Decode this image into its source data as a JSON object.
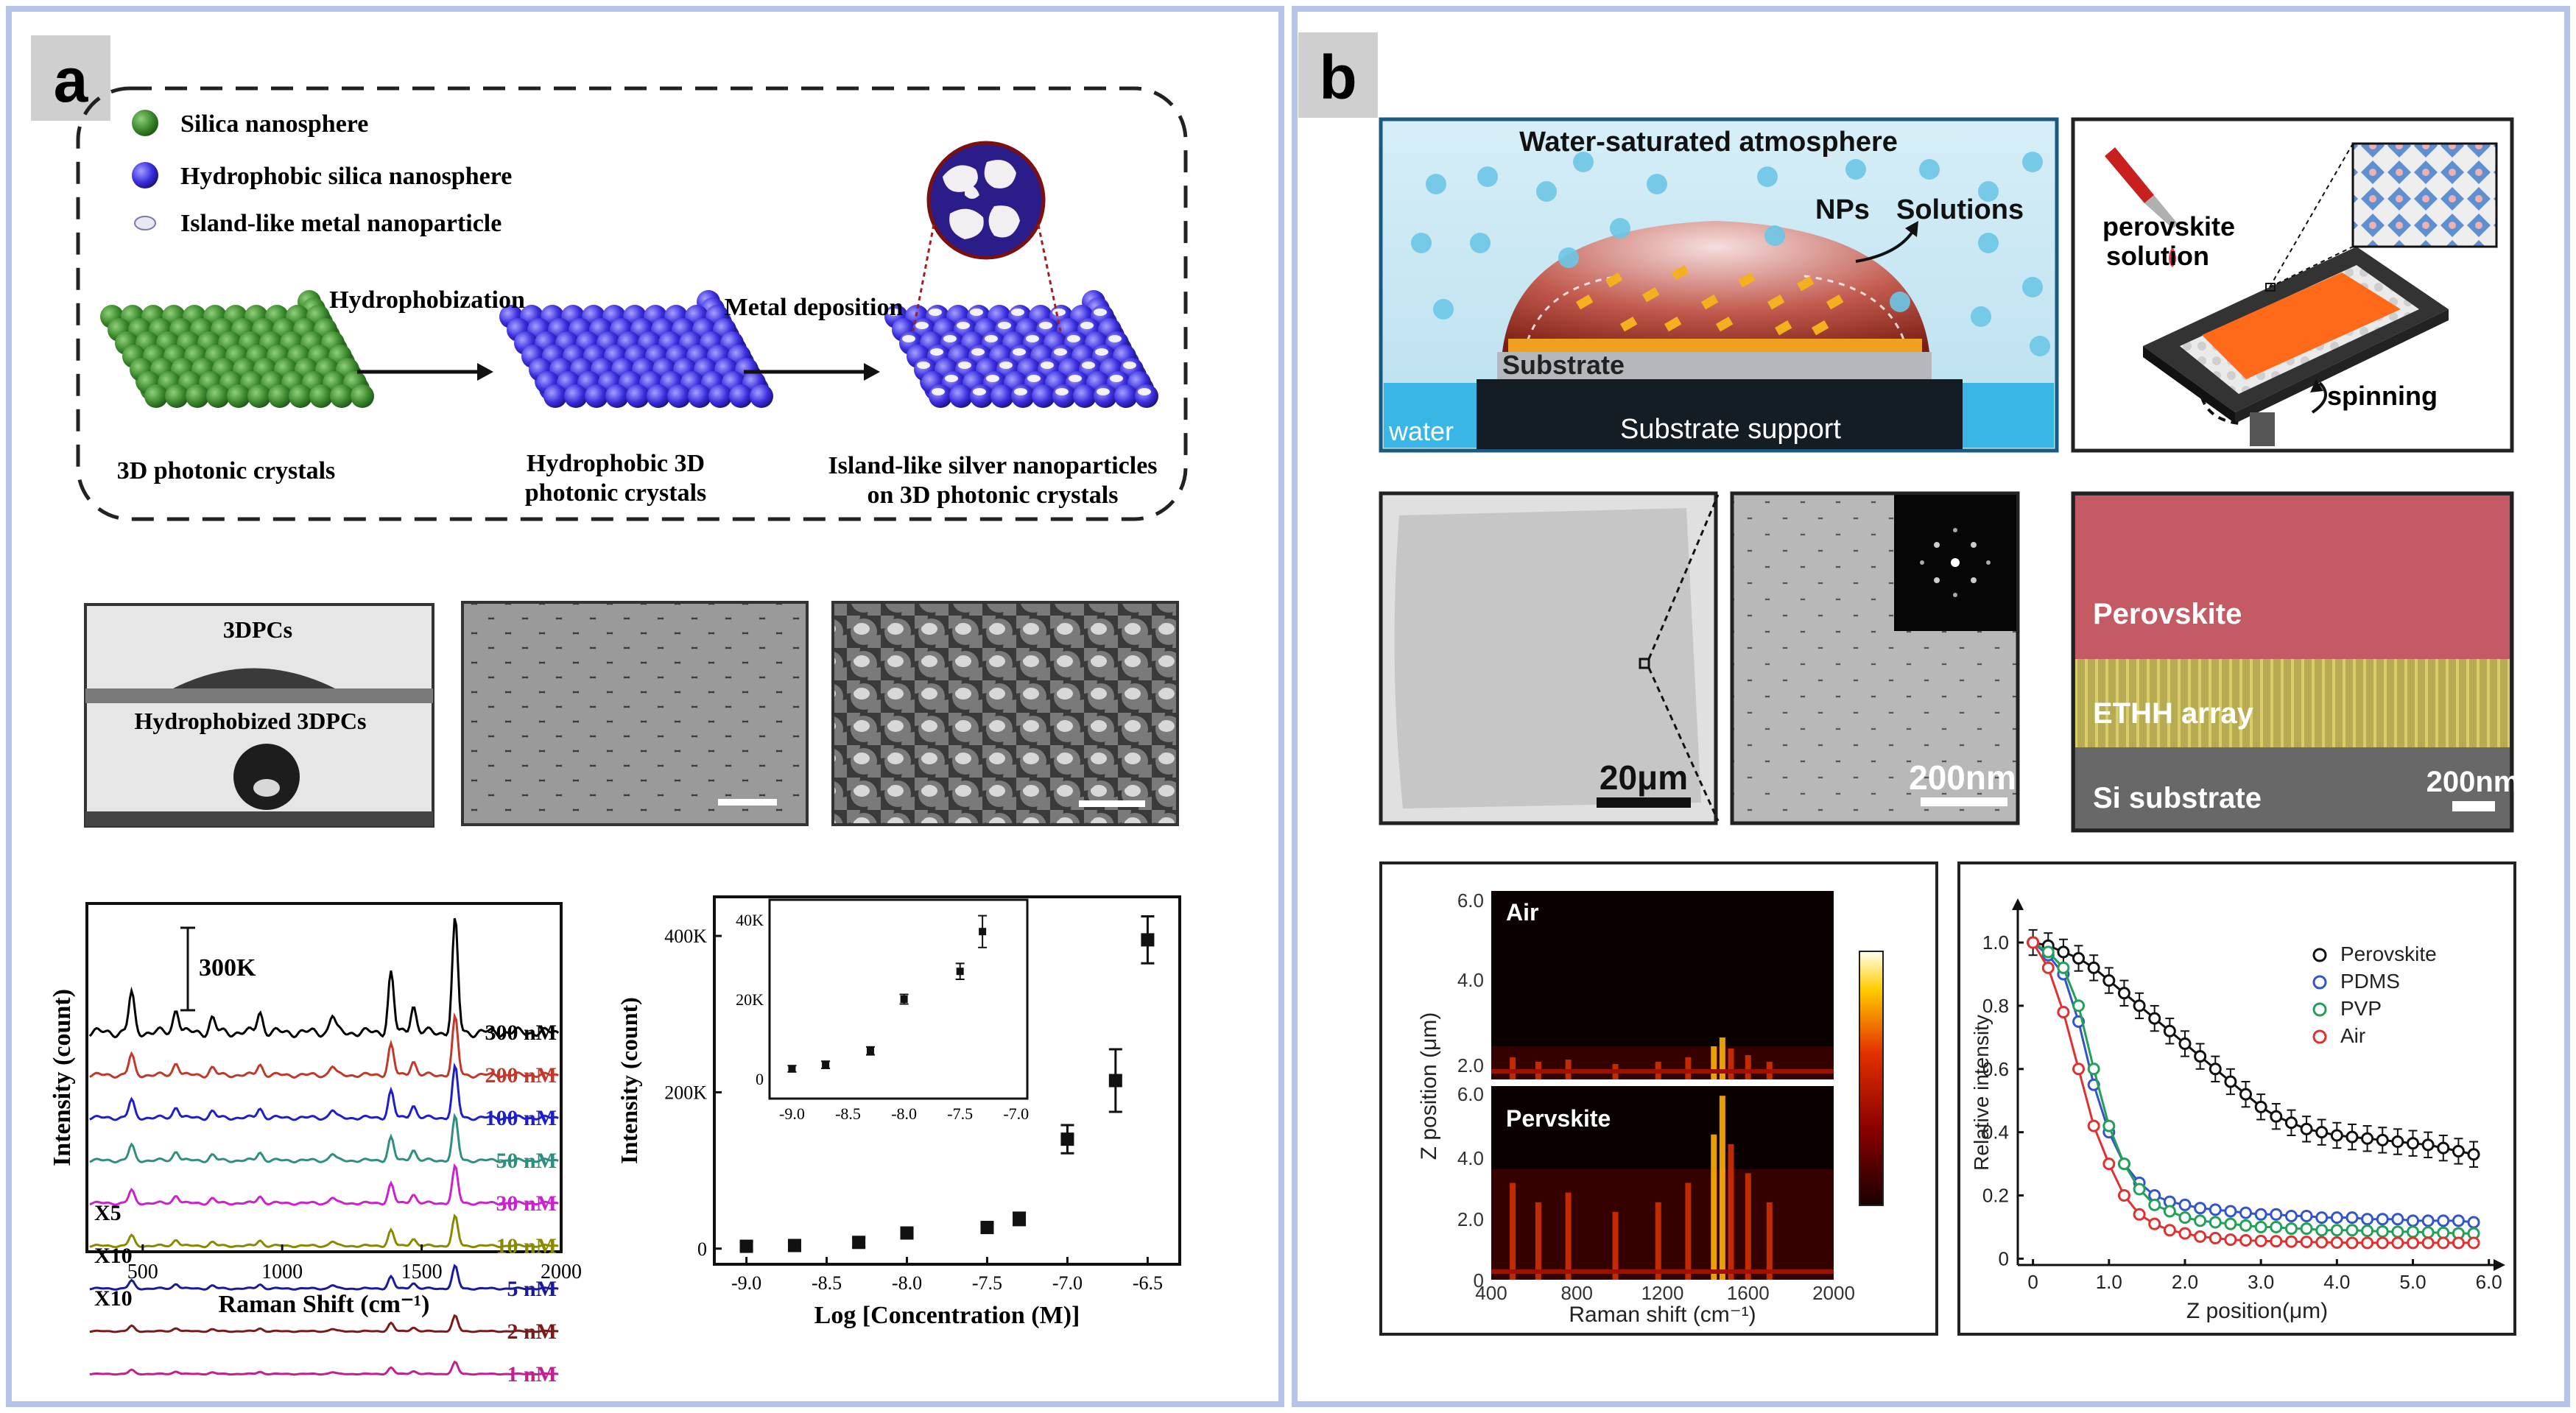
{
  "panel_a": {
    "tag": "a",
    "legend": {
      "silica": "Silica nanosphere",
      "hydrophobic": "Hydrophobic silica nanosphere",
      "island": "Island-like metal nanoparticle"
    },
    "arrows": {
      "step1": "Hydrophobization",
      "step2": "Metal deposition"
    },
    "stages": {
      "s1": "3D photonic crystals",
      "s2_line1": "Hydrophobic 3D",
      "s2_line2": "photonic crystals",
      "s3_line1": "Island-like silver nanoparticles",
      "s3_line2": "on 3D photonic crystals"
    },
    "contact_angle": {
      "top": "3DPCs",
      "bottom": "Hydrophobized  3DPCs"
    },
    "colors": {
      "silica": "#3d8a2e",
      "hydrophobic": "#3b2fe0",
      "island": "#e8e8f0"
    }
  },
  "chart_spectra": {
    "type": "line",
    "xlabel": "Raman Shift (cm⁻¹)",
    "ylabel": "Intensity (count)",
    "xticks": [
      "500",
      "1000",
      "1500",
      "2000"
    ],
    "scale_label": "300K",
    "multipliers": [
      "X5",
      "X10",
      "X10"
    ],
    "series": [
      {
        "name": "300 nM",
        "color": "#000000"
      },
      {
        "name": "200 nM",
        "color": "#c0392b"
      },
      {
        "name": "100 nM",
        "color": "#1f1fc8"
      },
      {
        "name": "50 nM",
        "color": "#2f8f7f"
      },
      {
        "name": "30 nM",
        "color": "#cc22cc"
      },
      {
        "name": "10 nM",
        "color": "#8a8a00"
      },
      {
        "name": "5 nM",
        "color": "#1a1a9a"
      },
      {
        "name": "2 nM",
        "color": "#7a1a1a"
      },
      {
        "name": "1 nM",
        "color": "#c02090"
      }
    ]
  },
  "chart_data": [
    {
      "type": "scatter",
      "title": "",
      "xlabel": "Log [Concentration (M)]",
      "ylabel": "Intensity (count)",
      "xlim": [
        -9.2,
        -6.3
      ],
      "ylim": [
        -20000,
        450000
      ],
      "xticks": [
        "-9.0",
        "-8.5",
        "-8.0",
        "-7.5",
        "-7.0",
        "-6.5"
      ],
      "yticks": [
        "0",
        "200K",
        "400K"
      ],
      "points": [
        {
          "x": -9.0,
          "y": 3000,
          "err": 5000
        },
        {
          "x": -8.7,
          "y": 4000,
          "err": 5000
        },
        {
          "x": -8.3,
          "y": 8000,
          "err": 6000
        },
        {
          "x": -8.0,
          "y": 20000,
          "err": 6000
        },
        {
          "x": -7.5,
          "y": 27000,
          "err": 7000
        },
        {
          "x": -7.3,
          "y": 38000,
          "err": 8000
        },
        {
          "x": -7.0,
          "y": 140000,
          "err": 18000
        },
        {
          "x": -6.7,
          "y": 215000,
          "err": 40000
        },
        {
          "x": -6.5,
          "y": 395000,
          "err": 30000
        }
      ],
      "inset": {
        "xlim": [
          -9.2,
          -6.9
        ],
        "ylim": [
          -5000,
          45000
        ],
        "xticks": [
          "-9.0",
          "-8.5",
          "-8.0",
          "-7.5",
          "-7.0"
        ],
        "yticks": [
          "0",
          "20K",
          "40K"
        ],
        "points": [
          {
            "x": -9.0,
            "y": 2500,
            "err": 800
          },
          {
            "x": -8.7,
            "y": 3500,
            "err": 900
          },
          {
            "x": -8.3,
            "y": 7000,
            "err": 1000
          },
          {
            "x": -8.0,
            "y": 20000,
            "err": 1200
          },
          {
            "x": -7.5,
            "y": 27000,
            "err": 2000
          },
          {
            "x": -7.3,
            "y": 37000,
            "err": 4000
          }
        ]
      }
    },
    {
      "type": "line",
      "title": "",
      "xlabel": "Z position(μm)",
      "ylabel": "Relative intensity",
      "xlim": [
        -0.2,
        6.1
      ],
      "ylim": [
        -0.02,
        1.07
      ],
      "xticks": [
        "0",
        "1.0",
        "2.0",
        "3.0",
        "4.0",
        "5.0",
        "6.0"
      ],
      "yticks": [
        "0",
        "0.2",
        "0.4",
        "0.6",
        "0.8",
        "1.0"
      ],
      "legend": "top-right",
      "x": [
        0,
        0.2,
        0.4,
        0.6,
        0.8,
        1.0,
        1.2,
        1.4,
        1.6,
        1.8,
        2.0,
        2.2,
        2.4,
        2.6,
        2.8,
        3.0,
        3.2,
        3.4,
        3.6,
        3.8,
        4.0,
        4.2,
        4.4,
        4.6,
        4.8,
        5.0,
        5.2,
        5.4,
        5.6,
        5.8
      ],
      "series": [
        {
          "name": "Perovskite",
          "color": "#111111",
          "fill": "#ffffff",
          "errorbars": true,
          "values": [
            1.0,
            0.99,
            0.97,
            0.95,
            0.92,
            0.88,
            0.84,
            0.8,
            0.76,
            0.72,
            0.68,
            0.64,
            0.6,
            0.56,
            0.52,
            0.48,
            0.45,
            0.43,
            0.41,
            0.4,
            0.39,
            0.385,
            0.38,
            0.375,
            0.37,
            0.365,
            0.36,
            0.35,
            0.34,
            0.33
          ]
        },
        {
          "name": "PDMS",
          "color": "#3355cc",
          "fill": "#ffffff",
          "errorbars": false,
          "values": [
            1.0,
            0.96,
            0.9,
            0.75,
            0.55,
            0.4,
            0.3,
            0.24,
            0.2,
            0.18,
            0.17,
            0.16,
            0.155,
            0.15,
            0.145,
            0.14,
            0.14,
            0.135,
            0.135,
            0.13,
            0.13,
            0.13,
            0.125,
            0.125,
            0.125,
            0.12,
            0.12,
            0.12,
            0.12,
            0.115
          ]
        },
        {
          "name": "PVP",
          "color": "#22a05a",
          "fill": "#ffffff",
          "errorbars": false,
          "values": [
            1.0,
            0.97,
            0.92,
            0.8,
            0.6,
            0.42,
            0.3,
            0.22,
            0.17,
            0.15,
            0.13,
            0.12,
            0.115,
            0.11,
            0.105,
            0.1,
            0.1,
            0.095,
            0.095,
            0.09,
            0.09,
            0.09,
            0.088,
            0.086,
            0.085,
            0.085,
            0.083,
            0.082,
            0.08,
            0.08
          ]
        },
        {
          "name": "Air",
          "color": "#e03030",
          "fill": "#ffffff",
          "errorbars": false,
          "values": [
            1.0,
            0.92,
            0.78,
            0.6,
            0.42,
            0.3,
            0.2,
            0.14,
            0.11,
            0.09,
            0.08,
            0.07,
            0.065,
            0.06,
            0.058,
            0.056,
            0.055,
            0.054,
            0.053,
            0.052,
            0.051,
            0.05,
            0.05,
            0.05,
            0.05,
            0.05,
            0.05,
            0.05,
            0.05,
            0.05
          ]
        }
      ]
    }
  ],
  "panel_b": {
    "tag": "b",
    "schematic": {
      "atmosphere": "Water-saturated atmosphere",
      "nps": "NPs",
      "solutions": "Solutions",
      "substrate": "Substrate",
      "water": "water",
      "support": "Substrate support"
    },
    "spin": {
      "solution_line1": "perovskite",
      "solution_line2": "solution",
      "spinning": "spinning"
    },
    "sem": {
      "scale1": "20μm",
      "scale2": "200nm",
      "scale3": "200nm"
    },
    "cross_section": {
      "perovskite": "Perovskite",
      "array": "ETHH array",
      "substrate": "Si substrate"
    },
    "heatmap": {
      "top_label": "Air",
      "bottom_label": "Pervskite",
      "xlabel": "Raman shift (cm⁻¹)",
      "ylabel": "Z position (μm)",
      "xticks": [
        "400",
        "800",
        "1200",
        "1600",
        "2000"
      ],
      "yticks_top": [
        "2.0",
        "4.0",
        "6.0"
      ],
      "yticks_bottom": [
        "0",
        "2.0",
        "4.0",
        "6.0"
      ]
    }
  }
}
